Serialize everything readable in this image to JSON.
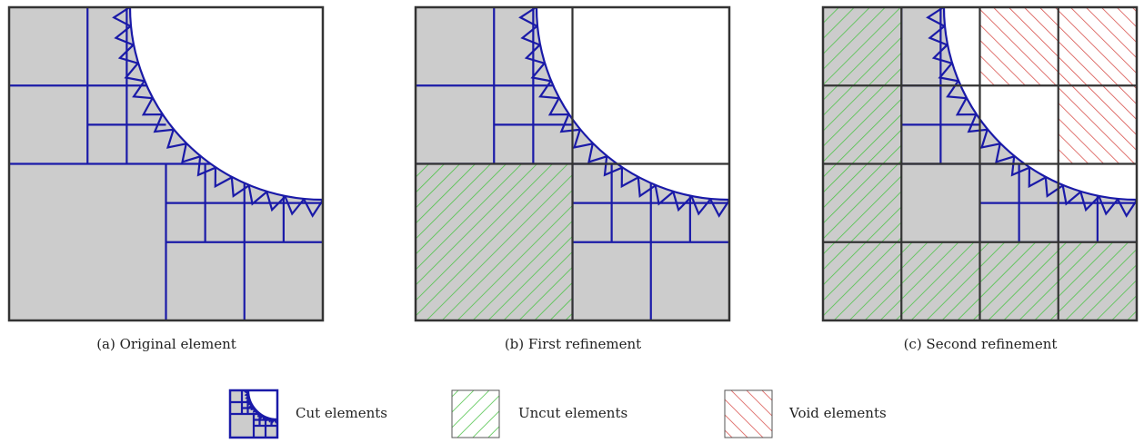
{
  "captions": [
    "(a) Original element",
    "(b) First refinement",
    "(c) Second refinement"
  ],
  "legend": [
    "Cut elements",
    "Uncut elements",
    "Void elements"
  ]
}
